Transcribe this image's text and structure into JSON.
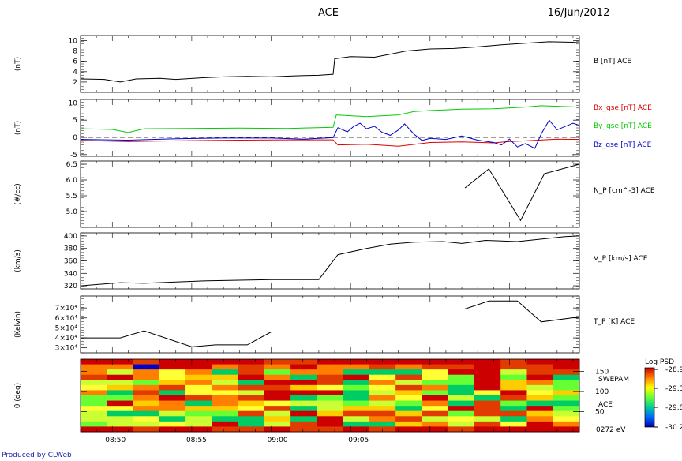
{
  "header": {
    "title": "ACE",
    "date": "16/Jun/2012"
  },
  "footer": "Produced by CLWeb",
  "x_ticks": [
    "08:50",
    "08:55",
    "09:00",
    "09:05"
  ],
  "chart_data": [
    {
      "type": "line",
      "ylabel": "(nT)",
      "ylim": [
        0,
        11
      ],
      "yticks": [
        "2",
        "4",
        "6",
        "8",
        "10"
      ],
      "series": [
        {
          "name": "B [nT] ACE",
          "color": "#000000",
          "points": [
            [
              0,
              2.6
            ],
            [
              1.5,
              2.5
            ],
            [
              2.5,
              2.0
            ],
            [
              3.5,
              2.6
            ],
            [
              5,
              2.7
            ],
            [
              6,
              2.5
            ],
            [
              7.5,
              2.8
            ],
            [
              9,
              3.0
            ],
            [
              10.5,
              3.1
            ],
            [
              12,
              3.0
            ],
            [
              13.5,
              3.2
            ],
            [
              15,
              3.3
            ],
            [
              15.9,
              3.5
            ],
            [
              16.0,
              6.5
            ],
            [
              17,
              6.9
            ],
            [
              18.5,
              6.8
            ],
            [
              19.5,
              7.4
            ],
            [
              20.5,
              8.0
            ],
            [
              22,
              8.4
            ],
            [
              23.5,
              8.5
            ],
            [
              25,
              8.8
            ],
            [
              26.5,
              9.2
            ],
            [
              28,
              9.5
            ],
            [
              29.5,
              9.8
            ],
            [
              31,
              9.7
            ],
            [
              31.4,
              9.6
            ]
          ]
        }
      ]
    },
    {
      "type": "line",
      "ylabel": "(nT)",
      "ylim": [
        -5.5,
        11
      ],
      "yticks": [
        "-5",
        "0",
        "5",
        "10"
      ],
      "series": [
        {
          "name": "Bx_gse [nT] ACE",
          "color": "#dd0000",
          "points": [
            [
              0,
              -0.9
            ],
            [
              3,
              -1.2
            ],
            [
              6,
              -1.0
            ],
            [
              10,
              -0.8
            ],
            [
              13,
              -0.7
            ],
            [
              15.9,
              -0.7
            ],
            [
              16.2,
              -2.2
            ],
            [
              18,
              -2.0
            ],
            [
              20,
              -2.6
            ],
            [
              22,
              -1.5
            ],
            [
              24,
              -1.3
            ],
            [
              26,
              -1.6
            ],
            [
              27,
              -1.2
            ],
            [
              28,
              -1.0
            ],
            [
              30,
              -0.5
            ],
            [
              31.4,
              -0.6
            ]
          ]
        },
        {
          "name": "By_gse [nT] ACE",
          "color": "#00cc00",
          "points": [
            [
              0,
              2.5
            ],
            [
              2,
              2.3
            ],
            [
              3,
              1.4
            ],
            [
              4,
              2.5
            ],
            [
              7,
              2.6
            ],
            [
              10,
              2.7
            ],
            [
              13,
              2.6
            ],
            [
              15.9,
              2.9
            ],
            [
              16.1,
              6.5
            ],
            [
              18,
              6.0
            ],
            [
              20,
              6.5
            ],
            [
              21,
              7.5
            ],
            [
              22,
              7.8
            ],
            [
              24,
              8.2
            ],
            [
              26,
              8.3
            ],
            [
              28,
              8.8
            ],
            [
              29,
              9.2
            ],
            [
              31.4,
              8.8
            ]
          ]
        },
        {
          "name": "Bz_gse [nT] ACE",
          "color": "#0000cc",
          "points": [
            [
              0,
              -0.6
            ],
            [
              3,
              -0.8
            ],
            [
              6,
              -0.4
            ],
            [
              9,
              -0.2
            ],
            [
              12,
              -0.2
            ],
            [
              14,
              -0.5
            ],
            [
              15.9,
              -0.1
            ],
            [
              16.2,
              2.8
            ],
            [
              16.8,
              1.6
            ],
            [
              17.2,
              3.2
            ],
            [
              17.6,
              4.1
            ],
            [
              18,
              2.5
            ],
            [
              18.5,
              3.2
            ],
            [
              19,
              1.4
            ],
            [
              19.5,
              0.6
            ],
            [
              20,
              2.1
            ],
            [
              20.4,
              3.9
            ],
            [
              21,
              0.9
            ],
            [
              21.5,
              -0.9
            ],
            [
              22,
              -0.3
            ],
            [
              23,
              -0.6
            ],
            [
              24,
              0.4
            ],
            [
              25,
              -0.8
            ],
            [
              26,
              -1.5
            ],
            [
              26.5,
              -2.2
            ],
            [
              27,
              -0.5
            ],
            [
              27.5,
              -2.8
            ],
            [
              28,
              -1.8
            ],
            [
              28.6,
              -3.2
            ],
            [
              29,
              1.0
            ],
            [
              29.5,
              5.0
            ],
            [
              30,
              2.2
            ],
            [
              31,
              4.1
            ],
            [
              31.4,
              3.5
            ]
          ]
        }
      ]
    },
    {
      "type": "line",
      "ylabel": "(#/cc)",
      "ylim": [
        4.5,
        6.6
      ],
      "yticks": [
        "5.0",
        "5.5",
        "6.0",
        "6.5"
      ],
      "series": [
        {
          "name": "N_P [cm^-3] ACE",
          "color": "#000000",
          "points": [
            [
              24.2,
              5.75
            ],
            [
              25.7,
              6.35
            ],
            [
              27.7,
              4.72
            ],
            [
              29.2,
              6.2
            ],
            [
              31.4,
              6.5
            ]
          ]
        }
      ]
    },
    {
      "type": "line",
      "ylabel": "(km/s)",
      "ylim": [
        315,
        405
      ],
      "yticks": [
        "320",
        "340",
        "360",
        "380",
        "400"
      ],
      "series": [
        {
          "name": "V_P [km/s] ACE",
          "color": "#000000",
          "points": [
            [
              0,
              320
            ],
            [
              2.5,
              325
            ],
            [
              4,
              324
            ],
            [
              6,
              326
            ],
            [
              8,
              328
            ],
            [
              10,
              329
            ],
            [
              12,
              330
            ],
            [
              14,
              330
            ],
            [
              15,
              330
            ],
            [
              16.2,
              370
            ],
            [
              18,
              380
            ],
            [
              19.5,
              387
            ],
            [
              21,
              390
            ],
            [
              22.8,
              391
            ],
            [
              24,
              388
            ],
            [
              25.5,
              393
            ],
            [
              27.5,
              391
            ],
            [
              29,
              395
            ],
            [
              30.5,
              399
            ],
            [
              31.4,
              400
            ]
          ]
        }
      ]
    },
    {
      "type": "line",
      "ylabel": "(Kelvin)",
      "ylim": [
        25000,
        82000
      ],
      "yticks": [
        "3×10⁴",
        "4×10⁴",
        "5×10⁴",
        "6×10⁴",
        "7×10⁴"
      ],
      "series": [
        {
          "name": "T_P [K] ACE",
          "color": "#000000",
          "points": [
            [
              0,
              40000
            ],
            [
              2.5,
              40000
            ],
            [
              4,
              47000
            ],
            [
              7,
              31000
            ],
            [
              8.5,
              33000
            ],
            [
              10.5,
              33000
            ],
            [
              12,
              46000
            ],
            [
              null,
              null
            ],
            [
              24.2,
              69000
            ],
            [
              25.7,
              77000
            ],
            [
              27.5,
              77000
            ],
            [
              29,
              56000
            ],
            [
              31.4,
              61000
            ]
          ]
        }
      ]
    },
    {
      "type": "heatmap",
      "ylabel": "θ (deg)",
      "ylim": [
        0,
        180
      ],
      "yticks": [
        "150",
        "100",
        "50"
      ],
      "right_labels": [
        "SWEPAM",
        "ACE",
        "0272 eV"
      ],
      "colorbar": {
        "title": "Log PSD",
        "ticks": [
          "-28.9",
          "-29.3",
          "-29.8",
          "-30.2"
        ]
      },
      "x_bins": 19,
      "y_bins": 14,
      "seed": 7
    }
  ]
}
